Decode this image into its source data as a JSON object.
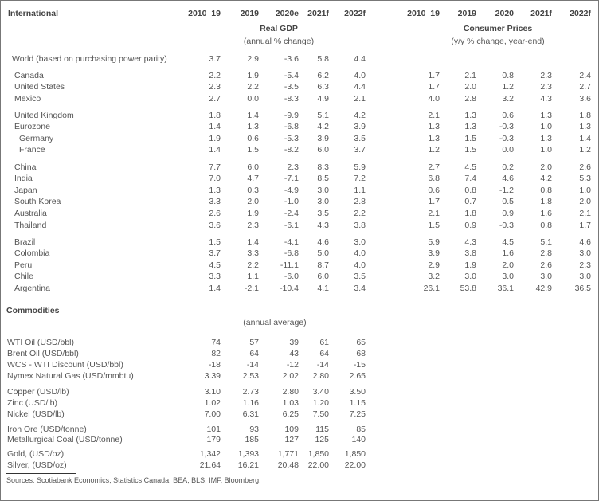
{
  "title": "International",
  "gdp": {
    "columns": [
      "2010–19",
      "2019",
      "2020e",
      "2021f",
      "2022f"
    ],
    "heading": "Real GDP",
    "subheading": "(annual % change)"
  },
  "cpi": {
    "columns": [
      "2010–19",
      "2019",
      "2020",
      "2021f",
      "2022f"
    ],
    "heading": "Consumer Prices",
    "subheading": "(y/y % change, year-end)"
  },
  "countries": [
    {
      "name": "World (based on purchasing power parity)",
      "gdp": [
        "3.7",
        "2.9",
        "-3.6",
        "5.8",
        "4.4"
      ],
      "cpi": []
    },
    {
      "name": "Canada",
      "gdp": [
        "2.2",
        "1.9",
        "-5.4",
        "6.2",
        "4.0"
      ],
      "cpi": [
        "1.7",
        "2.1",
        "0.8",
        "2.3",
        "2.4"
      ]
    },
    {
      "name": "United States",
      "gdp": [
        "2.3",
        "2.2",
        "-3.5",
        "6.3",
        "4.4"
      ],
      "cpi": [
        "1.7",
        "2.0",
        "1.2",
        "2.3",
        "2.7"
      ]
    },
    {
      "name": "Mexico",
      "gdp": [
        "2.7",
        "0.0",
        "-8.3",
        "4.9",
        "2.1"
      ],
      "cpi": [
        "4.0",
        "2.8",
        "3.2",
        "4.3",
        "3.6"
      ]
    },
    {
      "name": "United Kingdom",
      "gdp": [
        "1.8",
        "1.4",
        "-9.9",
        "5.1",
        "4.2"
      ],
      "cpi": [
        "2.1",
        "1.3",
        "0.6",
        "1.3",
        "1.8"
      ]
    },
    {
      "name": "Eurozone",
      "gdp": [
        "1.4",
        "1.3",
        "-6.8",
        "4.2",
        "3.9"
      ],
      "cpi": [
        "1.3",
        "1.3",
        "-0.3",
        "1.0",
        "1.3"
      ]
    },
    {
      "name": "Germany",
      "gdp": [
        "1.9",
        "0.6",
        "-5.3",
        "3.9",
        "3.5"
      ],
      "cpi": [
        "1.3",
        "1.5",
        "-0.3",
        "1.3",
        "1.4"
      ]
    },
    {
      "name": "France",
      "gdp": [
        "1.4",
        "1.5",
        "-8.2",
        "6.0",
        "3.7"
      ],
      "cpi": [
        "1.2",
        "1.5",
        "0.0",
        "1.0",
        "1.2"
      ]
    },
    {
      "name": "China",
      "gdp": [
        "7.7",
        "6.0",
        "2.3",
        "8.3",
        "5.9"
      ],
      "cpi": [
        "2.7",
        "4.5",
        "0.2",
        "2.0",
        "2.6"
      ]
    },
    {
      "name": "India",
      "gdp": [
        "7.0",
        "4.7",
        "-7.1",
        "8.5",
        "7.2"
      ],
      "cpi": [
        "6.8",
        "7.4",
        "4.6",
        "4.2",
        "5.3"
      ]
    },
    {
      "name": "Japan",
      "gdp": [
        "1.3",
        "0.3",
        "-4.9",
        "3.0",
        "1.1"
      ],
      "cpi": [
        "0.6",
        "0.8",
        "-1.2",
        "0.8",
        "1.0"
      ]
    },
    {
      "name": "South Korea",
      "gdp": [
        "3.3",
        "2.0",
        "-1.0",
        "3.0",
        "2.8"
      ],
      "cpi": [
        "1.7",
        "0.7",
        "0.5",
        "1.8",
        "2.0"
      ]
    },
    {
      "name": "Australia",
      "gdp": [
        "2.6",
        "1.9",
        "-2.4",
        "3.5",
        "2.2"
      ],
      "cpi": [
        "2.1",
        "1.8",
        "0.9",
        "1.6",
        "2.1"
      ]
    },
    {
      "name": "Thailand",
      "gdp": [
        "3.6",
        "2.3",
        "-6.1",
        "4.3",
        "3.8"
      ],
      "cpi": [
        "1.5",
        "0.9",
        "-0.3",
        "0.8",
        "1.7"
      ]
    },
    {
      "name": "Brazil",
      "gdp": [
        "1.5",
        "1.4",
        "-4.1",
        "4.6",
        "3.0"
      ],
      "cpi": [
        "5.9",
        "4.3",
        "4.5",
        "5.1",
        "4.6"
      ]
    },
    {
      "name": "Colombia",
      "gdp": [
        "3.7",
        "3.3",
        "-6.8",
        "5.0",
        "4.0"
      ],
      "cpi": [
        "3.9",
        "3.8",
        "1.6",
        "2.8",
        "3.0"
      ]
    },
    {
      "name": "Peru",
      "gdp": [
        "4.5",
        "2.2",
        "-11.1",
        "8.7",
        "4.0"
      ],
      "cpi": [
        "2.9",
        "1.9",
        "2.0",
        "2.6",
        "2.3"
      ]
    },
    {
      "name": "Chile",
      "gdp": [
        "3.3",
        "1.1",
        "-6.0",
        "6.0",
        "3.5"
      ],
      "cpi": [
        "3.2",
        "3.0",
        "3.0",
        "3.0",
        "3.0"
      ]
    },
    {
      "name": "Argentina",
      "gdp": [
        "1.4",
        "-2.1",
        "-10.4",
        "4.1",
        "3.4"
      ],
      "cpi": [
        "26.1",
        "53.8",
        "36.1",
        "42.9",
        "36.5"
      ]
    }
  ],
  "commodities": {
    "title": "Commodities",
    "subheading": "(annual average)",
    "rows": [
      {
        "name": "WTI Oil (USD/bbl)",
        "values": [
          "74",
          "57",
          "39",
          "61",
          "65"
        ]
      },
      {
        "name": "Brent Oil (USD/bbl)",
        "values": [
          "82",
          "64",
          "43",
          "64",
          "68"
        ]
      },
      {
        "name": "WCS - WTI Discount (USD/bbl)",
        "values": [
          "-18",
          "-14",
          "-12",
          "-14",
          "-15"
        ]
      },
      {
        "name": "Nymex Natural Gas (USD/mmbtu)",
        "values": [
          "3.39",
          "2.53",
          "2.02",
          "2.80",
          "2.65"
        ]
      },
      {
        "name": "Copper (USD/lb)",
        "values": [
          "3.10",
          "2.73",
          "2.80",
          "3.40",
          "3.50"
        ]
      },
      {
        "name": "Zinc (USD/lb)",
        "values": [
          "1.02",
          "1.16",
          "1.03",
          "1.20",
          "1.15"
        ]
      },
      {
        "name": "Nickel (USD/lb)",
        "values": [
          "7.00",
          "6.31",
          "6.25",
          "7.50",
          "7.25"
        ]
      },
      {
        "name": "Iron Ore (USD/tonne)",
        "values": [
          "101",
          "93",
          "109",
          "115",
          "85"
        ]
      },
      {
        "name": "Metallurgical Coal (USD/tonne)",
        "values": [
          "179",
          "185",
          "127",
          "125",
          "140"
        ]
      },
      {
        "name": "Gold, (USD/oz)",
        "values": [
          "1,342",
          "1,393",
          "1,771",
          "1,850",
          "1,850"
        ]
      },
      {
        "name": "Silver, (USD/oz)",
        "values": [
          "21.64",
          "16.21",
          "20.48",
          "22.00",
          "22.00"
        ]
      }
    ]
  },
  "sources": "Sources: Scotiabank Economics, Statistics Canada, BEA, BLS, IMF, Bloomberg."
}
